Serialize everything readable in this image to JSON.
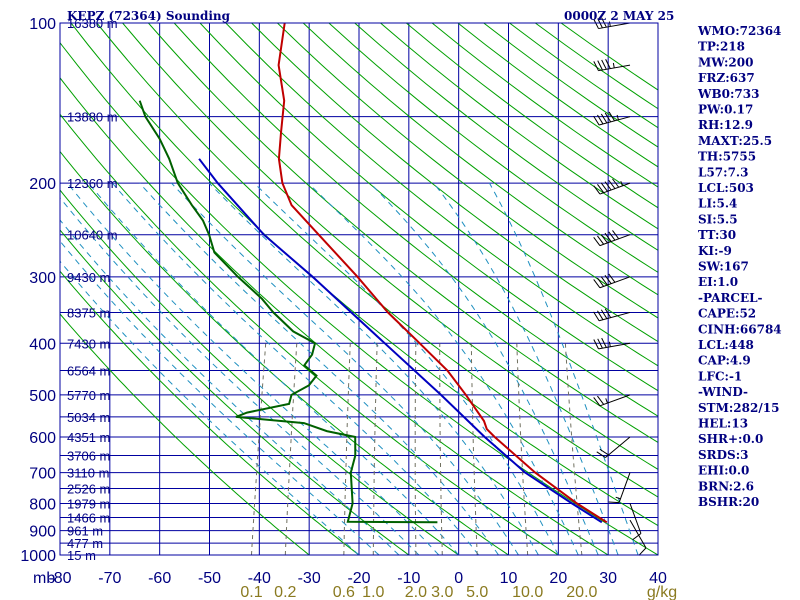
{
  "header": {
    "station": "KEPZ (72364) Sounding",
    "time": "0000Z  2 MAY 25"
  },
  "axes": {
    "pressure_labels": [
      "100",
      "200",
      "300",
      "400",
      "500",
      "600",
      "700",
      "800",
      "900",
      "1000"
    ],
    "pressure_unit": "mb",
    "temperature_labels": [
      "-80",
      "-70",
      "-60",
      "-50",
      "-40",
      "-30",
      "-20",
      "-10",
      "0",
      "10",
      "20",
      "30",
      "40"
    ],
    "mixing_ratio_labels": [
      "0.1",
      "0.2",
      "0.6",
      "1.0",
      "2.0",
      "3.0",
      "5.0",
      "10.0",
      "20.0"
    ],
    "mixing_ratio_unit": "g/kg",
    "height_labels": [
      "16380 m",
      "13880 m",
      "12360 m",
      "10640 m",
      "9430 m",
      "8375 m",
      "7430 m",
      "6564 m",
      "5770 m",
      "5034 m",
      "4351 m",
      "3706 m",
      "3110 m",
      "2526 m",
      "1979 m",
      "1466 m",
      "961 m",
      "477 m",
      "15 m"
    ]
  },
  "indices": [
    "WMO:72364",
    "TP:218",
    "MW:200",
    "FRZ:637",
    "WB0:733",
    "PW:0.17",
    "RH:12.9",
    "MAXT:25.5",
    "TH:5755",
    "L57:7.3",
    "LCL:503",
    "LI:5.4",
    "SI:5.5",
    "TT:30",
    "KI:-9",
    "SW:167",
    "EI:1.0",
    "-PARCEL-",
    "CAPE:52",
    "CINH:66784",
    "LCL:448",
    "CAP:4.9",
    "LFC:-1",
    "-WIND-",
    "STM:282/15",
    "HEL:13",
    "SHR+:0.0",
    "SRDS:3",
    "EHI:0.0",
    "BRN:2.6",
    "BSHR:20"
  ],
  "colors": {
    "grid": "#0000a0",
    "dry_adiabat": "#00a000",
    "moist_adiabat": "#2090c0",
    "mixing_ratio": "#707060",
    "temperature": "#c00000",
    "dewpoint": "#006000",
    "parcel": "#0000c0",
    "text": "#000080"
  },
  "chart_data": {
    "type": "line",
    "title": "KEPZ (72364) Sounding",
    "xlabel": "",
    "ylabel": "mb",
    "xlim": [
      -80,
      40
    ],
    "ylim": [
      1000,
      100
    ],
    "y_scale": "log",
    "skew": true,
    "series": [
      {
        "name": "",
        "role": "temperature",
        "points": [
          {
            "p": 868,
            "t": 28
          },
          {
            "p": 800,
            "t": 21
          },
          {
            "p": 700,
            "t": 11
          },
          {
            "p": 600,
            "t": 1
          },
          {
            "p": 580,
            "t": -1
          },
          {
            "p": 560,
            "t": -2
          },
          {
            "p": 500,
            "t": -7
          },
          {
            "p": 450,
            "t": -12
          },
          {
            "p": 400,
            "t": -19
          },
          {
            "p": 350,
            "t": -27
          },
          {
            "p": 300,
            "t": -35
          },
          {
            "p": 250,
            "t": -45
          },
          {
            "p": 220,
            "t": -52
          },
          {
            "p": 200,
            "t": -55
          },
          {
            "p": 180,
            "t": -57
          },
          {
            "p": 160,
            "t": -58
          },
          {
            "p": 140,
            "t": -59
          },
          {
            "p": 120,
            "t": -62
          },
          {
            "p": 100,
            "t": -63
          }
        ]
      },
      {
        "name": "",
        "role": "dewpoint",
        "points": [
          {
            "p": 868,
            "t": -6
          },
          {
            "p": 866,
            "t": -24
          },
          {
            "p": 800,
            "t": -24
          },
          {
            "p": 700,
            "t": -26
          },
          {
            "p": 650,
            "t": -26
          },
          {
            "p": 600,
            "t": -27
          },
          {
            "p": 585,
            "t": -33
          },
          {
            "p": 565,
            "t": -38
          },
          {
            "p": 550,
            "t": -52
          },
          {
            "p": 540,
            "t": -50
          },
          {
            "p": 520,
            "t": -42
          },
          {
            "p": 500,
            "t": -42
          },
          {
            "p": 480,
            "t": -39
          },
          {
            "p": 460,
            "t": -38
          },
          {
            "p": 440,
            "t": -41
          },
          {
            "p": 420,
            "t": -40
          },
          {
            "p": 400,
            "t": -40
          },
          {
            "p": 380,
            "t": -45
          },
          {
            "p": 350,
            "t": -50
          },
          {
            "p": 330,
            "t": -53
          },
          {
            "p": 300,
            "t": -59
          },
          {
            "p": 270,
            "t": -65
          },
          {
            "p": 250,
            "t": -67
          },
          {
            "p": 235,
            "t": -69
          },
          {
            "p": 220,
            "t": -72
          },
          {
            "p": 200,
            "t": -76
          },
          {
            "p": 180,
            "t": -79
          },
          {
            "p": 165,
            "t": -82
          },
          {
            "p": 150,
            "t": -86
          },
          {
            "p": 140,
            "t": -88
          }
        ]
      },
      {
        "name": "",
        "role": "parcel",
        "points": [
          {
            "p": 868,
            "t": 27
          },
          {
            "p": 800,
            "t": 20
          },
          {
            "p": 700,
            "t": 9
          },
          {
            "p": 600,
            "t": -1
          },
          {
            "p": 500,
            "t": -12
          },
          {
            "p": 400,
            "t": -26
          },
          {
            "p": 300,
            "t": -44
          },
          {
            "p": 250,
            "t": -56
          },
          {
            "p": 200,
            "t": -68
          },
          {
            "p": 180,
            "t": -73
          }
        ]
      }
    ],
    "heights": [
      {
        "p": 100,
        "label": "16380 m"
      },
      {
        "p": 150,
        "label": "13880 m"
      },
      {
        "p": 200,
        "label": "12360 m"
      },
      {
        "p": 250,
        "label": "10640 m"
      },
      {
        "p": 300,
        "label": "9430 m"
      },
      {
        "p": 350,
        "label": "8375 m"
      },
      {
        "p": 400,
        "label": "7430 m"
      },
      {
        "p": 450,
        "label": "6564 m"
      },
      {
        "p": 500,
        "label": "5770 m"
      },
      {
        "p": 550,
        "label": "5034 m"
      },
      {
        "p": 600,
        "label": "4351 m"
      },
      {
        "p": 650,
        "label": "3706 m"
      },
      {
        "p": 700,
        "label": "3110 m"
      },
      {
        "p": 750,
        "label": "2526 m"
      },
      {
        "p": 800,
        "label": "1979 m"
      },
      {
        "p": 850,
        "label": "1466 m"
      },
      {
        "p": 900,
        "label": "961 m"
      },
      {
        "p": 950,
        "label": "477 m"
      },
      {
        "p": 1000,
        "label": "15 m"
      }
    ],
    "mixing_ratios": [
      0.1,
      0.2,
      0.6,
      1.0,
      2.0,
      3.0,
      5.0,
      10.0,
      20.0
    ],
    "winds": [
      {
        "p": 860,
        "dir": 150,
        "spd": 10
      },
      {
        "p": 800,
        "dir": 160,
        "spd": 10
      },
      {
        "p": 700,
        "dir": 200,
        "spd": 15
      },
      {
        "p": 600,
        "dir": 230,
        "spd": 20
      },
      {
        "p": 500,
        "dir": 250,
        "spd": 25
      },
      {
        "p": 400,
        "dir": 260,
        "spd": 35
      },
      {
        "p": 350,
        "dir": 255,
        "spd": 40
      },
      {
        "p": 300,
        "dir": 250,
        "spd": 50
      },
      {
        "p": 250,
        "dir": 250,
        "spd": 60
      },
      {
        "p": 200,
        "dir": 250,
        "spd": 65
      },
      {
        "p": 150,
        "dir": 255,
        "spd": 55
      },
      {
        "p": 120,
        "dir": 260,
        "spd": 45
      },
      {
        "p": 100,
        "dir": 260,
        "spd": 35
      }
    ]
  }
}
